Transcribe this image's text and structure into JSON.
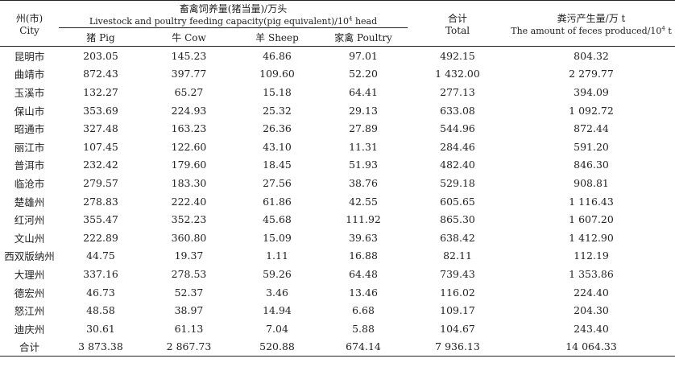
{
  "header": {
    "city_cn": "州(市)",
    "city_en": "City",
    "capacity_cn": "畜禽饲养量(猪当量)/万头",
    "capacity_en": "Livestock and poultry feeding capacity(pig equivalent)/10",
    "capacity_exp": "4",
    "capacity_unit": " head",
    "pig": "猪 Pig",
    "cow": "牛 Cow",
    "sheep": "羊 Sheep",
    "poultry": "家禽 Poultry",
    "total_cn": "合计",
    "total_en": "Total",
    "feces_cn": "粪污产生量/万 t",
    "feces_en": "The amount of feces produced/10",
    "feces_exp": "4",
    "feces_unit": " t"
  },
  "rows": [
    {
      "city": "昆明市",
      "pig": "203.05",
      "cow": "145.23",
      "sheep": "46.86",
      "poultry": "97.01",
      "total": "492.15",
      "feces": "804.32"
    },
    {
      "city": "曲靖市",
      "pig": "872.43",
      "cow": "397.77",
      "sheep": "109.60",
      "poultry": "52.20",
      "total": "1 432.00",
      "feces": "2 279.77"
    },
    {
      "city": "玉溪市",
      "pig": "132.27",
      "cow": "65.27",
      "sheep": "15.18",
      "poultry": "64.41",
      "total": "277.13",
      "feces": "394.09"
    },
    {
      "city": "保山市",
      "pig": "353.69",
      "cow": "224.93",
      "sheep": "25.32",
      "poultry": "29.13",
      "total": "633.08",
      "feces": "1 092.72"
    },
    {
      "city": "昭通市",
      "pig": "327.48",
      "cow": "163.23",
      "sheep": "26.36",
      "poultry": "27.89",
      "total": "544.96",
      "feces": "872.44"
    },
    {
      "city": "丽江市",
      "pig": "107.45",
      "cow": "122.60",
      "sheep": "43.10",
      "poultry": "11.31",
      "total": "284.46",
      "feces": "591.20"
    },
    {
      "city": "普洱市",
      "pig": "232.42",
      "cow": "179.60",
      "sheep": "18.45",
      "poultry": "51.93",
      "total": "482.40",
      "feces": "846.30"
    },
    {
      "city": "临沧市",
      "pig": "279.57",
      "cow": "183.30",
      "sheep": "27.56",
      "poultry": "38.76",
      "total": "529.18",
      "feces": "908.81"
    },
    {
      "city": "楚雄州",
      "pig": "278.83",
      "cow": "222.40",
      "sheep": "61.86",
      "poultry": "42.55",
      "total": "605.65",
      "feces": "1 116.43"
    },
    {
      "city": "红河州",
      "pig": "355.47",
      "cow": "352.23",
      "sheep": "45.68",
      "poultry": "111.92",
      "total": "865.30",
      "feces": "1 607.20"
    },
    {
      "city": "文山州",
      "pig": "222.89",
      "cow": "360.80",
      "sheep": "15.09",
      "poultry": "39.63",
      "total": "638.42",
      "feces": "1 412.90"
    },
    {
      "city": "西双版纳州",
      "pig": "44.75",
      "cow": "19.37",
      "sheep": "1.11",
      "poultry": "16.88",
      "total": "82.11",
      "feces": "112.19"
    },
    {
      "city": "大理州",
      "pig": "337.16",
      "cow": "278.53",
      "sheep": "59.26",
      "poultry": "64.48",
      "total": "739.43",
      "feces": "1 353.86"
    },
    {
      "city": "德宏州",
      "pig": "46.73",
      "cow": "52.37",
      "sheep": "3.46",
      "poultry": "13.46",
      "total": "116.02",
      "feces": "224.40"
    },
    {
      "city": "怒江州",
      "pig": "48.58",
      "cow": "38.97",
      "sheep": "14.94",
      "poultry": "6.68",
      "total": "109.17",
      "feces": "204.30"
    },
    {
      "city": "迪庆州",
      "pig": "30.61",
      "cow": "61.13",
      "sheep": "7.04",
      "poultry": "5.88",
      "total": "104.67",
      "feces": "243.40"
    },
    {
      "city": "合计",
      "pig": "3 873.38",
      "cow": "2 867.73",
      "sheep": "520.88",
      "poultry": "674.14",
      "total": "7 936.13",
      "feces": "14 064.33"
    }
  ]
}
